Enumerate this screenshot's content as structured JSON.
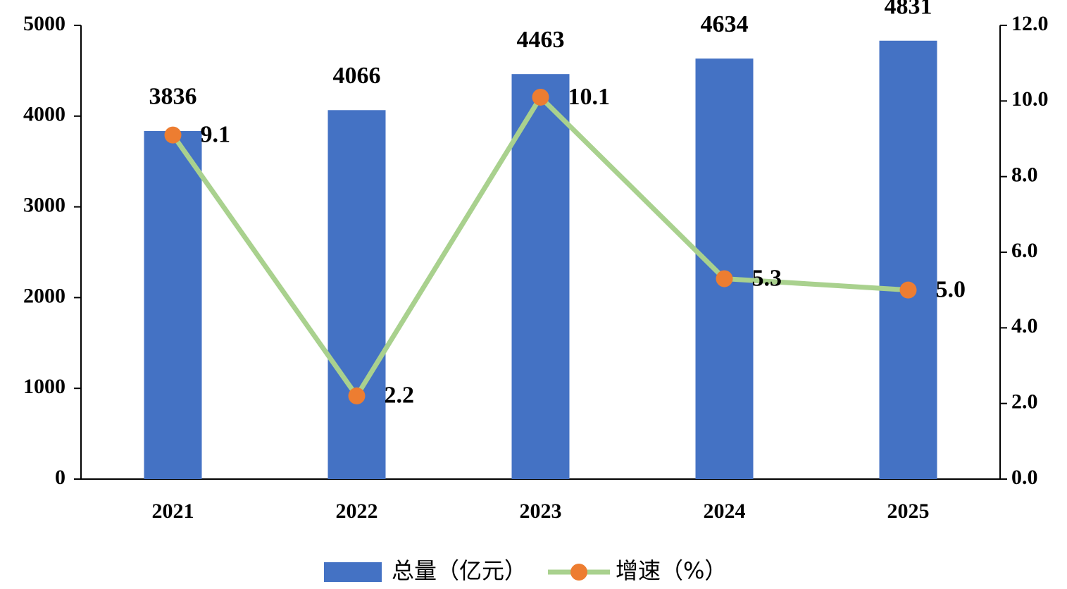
{
  "chart_data": {
    "type": "bar",
    "categories": [
      "2021",
      "2022",
      "2023",
      "2024",
      "2025"
    ],
    "series": [
      {
        "name": "总量（亿元）",
        "type": "bar",
        "color": "#4472c4",
        "values": [
          3836,
          4066,
          4463,
          4634,
          4831
        ]
      },
      {
        "name": "增速（%）",
        "type": "line",
        "axis": "y2",
        "color": "#a9d18e",
        "marker_color": "#ed7d31",
        "values": [
          9.1,
          2.2,
          10.1,
          5.3,
          5.0
        ],
        "value_labels": [
          "9.1",
          "2.2",
          "10.1",
          "5.3",
          "5.0"
        ]
      }
    ],
    "ylim": [
      0,
      5000
    ],
    "yticks": [
      0,
      1000,
      2000,
      3000,
      4000,
      5000
    ],
    "y2lim": [
      0,
      12
    ],
    "y2ticks": [
      {
        "value": 0,
        "label": "0.0"
      },
      {
        "value": 2,
        "label": "2.0"
      },
      {
        "value": 4,
        "label": "4.0"
      },
      {
        "value": 6,
        "label": "6.0"
      },
      {
        "value": 8,
        "label": "8.0"
      },
      {
        "value": 10,
        "label": "10.0"
      },
      {
        "value": 12,
        "label": "12.0"
      }
    ],
    "grid": false,
    "legend": "bottom"
  }
}
